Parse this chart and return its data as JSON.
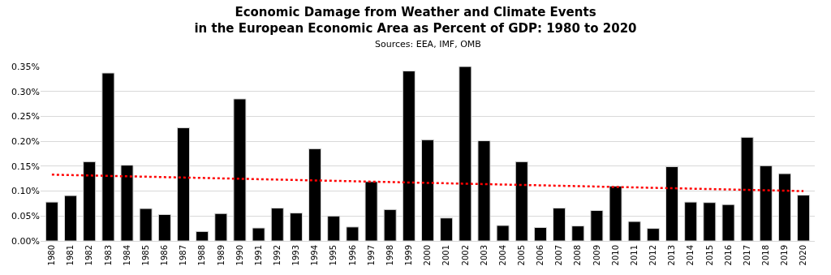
{
  "chart_data": {
    "type": "bar",
    "title": "Economic Damage from Weather and Climate Events\nin the European Economic Area as Percent of GDP: 1980 to 2020",
    "subtitle": "Sources: EEA, IMF, OMB",
    "categories": [
      "1980",
      "1981",
      "1982",
      "1983",
      "1984",
      "1985",
      "1986",
      "1987",
      "1988",
      "1989",
      "1990",
      "1991",
      "1992",
      "1993",
      "1994",
      "1995",
      "1996",
      "1997",
      "1998",
      "1999",
      "2000",
      "2001",
      "2002",
      "2003",
      "2004",
      "2005",
      "2006",
      "2007",
      "2008",
      "2009",
      "2010",
      "2011",
      "2012",
      "2013",
      "2014",
      "2015",
      "2016",
      "2017",
      "2018",
      "2019",
      "2020"
    ],
    "series": [
      {
        "color": "#000000",
        "values": [
          0.078,
          0.091,
          0.159,
          0.337,
          0.152,
          0.065,
          0.053,
          0.227,
          0.019,
          0.055,
          0.285,
          0.026,
          0.066,
          0.056,
          0.185,
          0.05,
          0.028,
          0.119,
          0.063,
          0.341,
          0.203,
          0.046,
          0.35,
          0.201,
          0.031,
          0.159,
          0.027,
          0.066,
          0.03,
          0.061,
          0.11,
          0.039,
          0.025,
          0.149,
          0.078,
          0.077,
          0.073,
          0.208,
          0.151,
          0.135,
          0.092
        ]
      },
      {
        "type": "line",
        "color": "#ff0000",
        "line_style": "dotted",
        "values": [
          0.133,
          null,
          null,
          null,
          null,
          null,
          null,
          null,
          null,
          null,
          null,
          null,
          null,
          null,
          null,
          null,
          null,
          null,
          null,
          null,
          null,
          null,
          null,
          null,
          null,
          null,
          null,
          null,
          null,
          null,
          null,
          null,
          null,
          null,
          null,
          null,
          null,
          null,
          null,
          null,
          0.1
        ]
      }
    ],
    "ylim": [
      0,
      0.35
    ],
    "yticks": [
      {
        "value": 0,
        "label": "0.00%"
      },
      {
        "value": 0.05,
        "label": "0.05%"
      },
      {
        "value": 0.1,
        "label": "0.10%"
      },
      {
        "value": 0.15,
        "label": "0.15%"
      },
      {
        "value": 0.2,
        "label": "0.20%"
      },
      {
        "value": 0.25,
        "label": "0.25%"
      },
      {
        "value": 0.3,
        "label": "0.30%"
      },
      {
        "value": 0.35,
        "label": "0.35%"
      }
    ],
    "grid": "y"
  }
}
